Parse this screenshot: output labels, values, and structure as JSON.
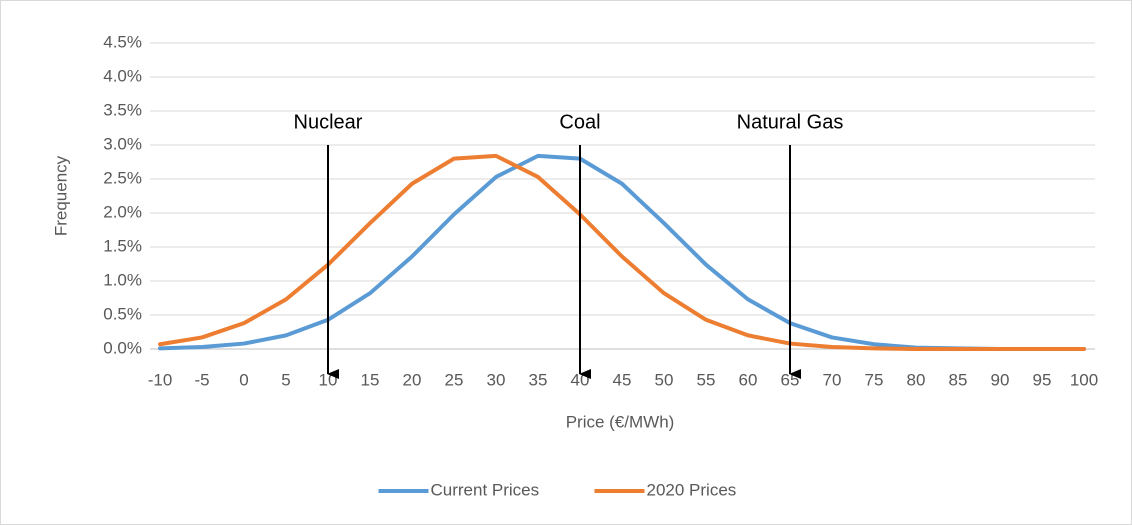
{
  "chart_data": {
    "type": "line",
    "x_label": "Price (€/MWh)",
    "y_label": "Frequency",
    "x": [
      -10,
      -5,
      0,
      5,
      10,
      15,
      20,
      25,
      30,
      35,
      40,
      45,
      50,
      55,
      60,
      65,
      70,
      75,
      80,
      85,
      90,
      95,
      100
    ],
    "series": [
      {
        "name": "Current Prices",
        "color": "#5b9bd5",
        "values": [
          0.01,
          0.03,
          0.08,
          0.2,
          0.43,
          0.82,
          1.36,
          1.98,
          2.53,
          2.84,
          2.8,
          2.43,
          1.85,
          1.24,
          0.73,
          0.38,
          0.17,
          0.07,
          0.02,
          0.01,
          0,
          0,
          0
        ]
      },
      {
        "name": "2020 Prices",
        "color": "#ed7d31",
        "values": [
          0.07,
          0.17,
          0.38,
          0.73,
          1.24,
          1.85,
          2.43,
          2.8,
          2.84,
          2.53,
          1.98,
          1.36,
          0.82,
          0.43,
          0.2,
          0.08,
          0.03,
          0.01,
          0,
          0,
          0,
          0,
          0
        ]
      }
    ],
    "xlim": [
      -10,
      100
    ],
    "xticks": [
      -10,
      -5,
      0,
      5,
      10,
      15,
      20,
      25,
      30,
      35,
      40,
      45,
      50,
      55,
      60,
      65,
      70,
      75,
      80,
      85,
      90,
      95,
      100
    ],
    "ylim": [
      0,
      4.5
    ],
    "yticks": [
      {
        "value": 0,
        "label": "0.0%"
      },
      {
        "value": 0.5,
        "label": "0.5%"
      },
      {
        "value": 1,
        "label": "1.0%"
      },
      {
        "value": 1.5,
        "label": "1.5%"
      },
      {
        "value": 2,
        "label": "2.0%"
      },
      {
        "value": 2.5,
        "label": "2.5%"
      },
      {
        "value": 3,
        "label": "3.0%"
      },
      {
        "value": 3.5,
        "label": "3.5%"
      },
      {
        "value": 4,
        "label": "4.0%"
      },
      {
        "value": 4.5,
        "label": "4.5%"
      }
    ],
    "grid": true,
    "legend": "bottom",
    "annotations": [
      {
        "text": "Nuclear",
        "x": 10
      },
      {
        "text": "Coal",
        "x": 40
      },
      {
        "text": "Natural Gas",
        "x": 65
      }
    ]
  }
}
